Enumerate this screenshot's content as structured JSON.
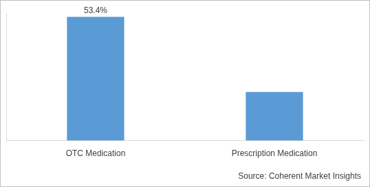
{
  "chart_data": {
    "type": "bar",
    "categories": [
      "OTC Medication",
      "Prescription Medication"
    ],
    "values": [
      53.4,
      21.0
    ],
    "value_labels": [
      "53.4%",
      null
    ],
    "data_labels": true,
    "color": "#5b9bd5",
    "ylim": [
      0,
      55
    ],
    "grid": false,
    "tick_labels": "x",
    "annotations": [
      "Source: Coherent Market Insights"
    ]
  }
}
